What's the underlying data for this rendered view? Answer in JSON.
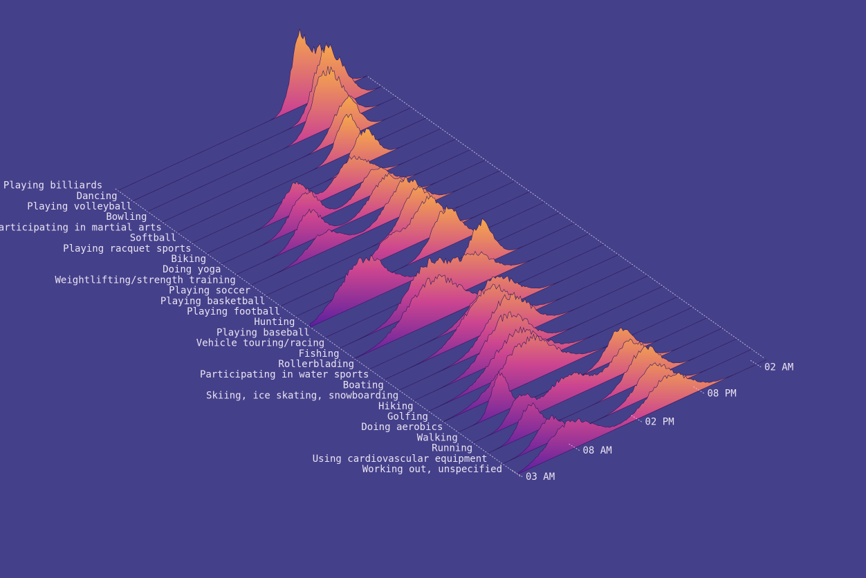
{
  "chart_data": {
    "type": "area",
    "title": "",
    "xlabel": "",
    "ylabel": "",
    "colors": {
      "background": "#45408a",
      "low": "#5a1fa0",
      "mid": "#cc4590",
      "high": "#f7a84a",
      "guide": "#d9d4ea",
      "text": "#e9e4f2"
    },
    "x_ticks": [
      "03 AM",
      "08 AM",
      "02 PM",
      "08 PM",
      "02 AM"
    ],
    "x_range_hours": [
      3,
      27
    ],
    "categories": [
      "Playing billiards",
      "Dancing",
      "Playing volleyball",
      "Bowling",
      "Participating in martial arts",
      "Softball",
      "Playing racquet sports",
      "Biking",
      "Doing yoga",
      "Weightlifting/strength training",
      "Playing soccer",
      "Playing basketball",
      "Playing football",
      "Hunting",
      "Playing baseball",
      "Vehicle touring/racing",
      "Fishing",
      "Rollerblading",
      "Participating in water sports",
      "Boating",
      "Skiing, ice skating, snowboarding",
      "Hiking",
      "Golfing",
      "Doing aerobics",
      "Walking",
      "Running",
      "Using cardiovascular equipment",
      "Working out, unspecified"
    ],
    "series": [
      {
        "peaks": [
          [
            20.5,
            1.3,
            0.8
          ],
          [
            22.8,
            1.0,
            1.3
          ]
        ]
      },
      {
        "peaks": [
          [
            21.3,
            1.0,
            1.0
          ],
          [
            23.0,
            0.7,
            1.2
          ]
        ]
      },
      {
        "peaks": [
          [
            19.8,
            0.9,
            1.1
          ],
          [
            21.5,
            0.6,
            1.3
          ]
        ]
      },
      {
        "peaks": [
          [
            20.7,
            0.8,
            1.2
          ]
        ]
      },
      {
        "peaks": [
          [
            19.4,
            0.8,
            1.0
          ]
        ]
      },
      {
        "peaks": [
          [
            19.6,
            0.7,
            1.1
          ]
        ]
      },
      {
        "peaks": [
          [
            11.5,
            0.6,
            1.2
          ],
          [
            17.0,
            0.6,
            1.6
          ]
        ]
      },
      {
        "peaks": [
          [
            11.0,
            0.7,
            1.3
          ],
          [
            17.8,
            0.5,
            1.4
          ]
        ]
      },
      {
        "peaks": [
          [
            10.0,
            0.6,
            1.2
          ],
          [
            17.5,
            0.6,
            1.5
          ]
        ]
      },
      {
        "peaks": [
          [
            17.8,
            0.7,
            1.6
          ],
          [
            10.0,
            0.4,
            1.5
          ]
        ]
      },
      {
        "peaks": [
          [
            17.5,
            0.8,
            1.3
          ]
        ]
      },
      {
        "peaks": [
          [
            17.2,
            0.8,
            1.4
          ],
          [
            13.5,
            0.4,
            1.3
          ]
        ]
      },
      {
        "peaks": [
          [
            17.5,
            0.8,
            1.3
          ]
        ]
      },
      {
        "peaks": [
          [
            8.0,
            0.9,
            2.2
          ]
        ]
      },
      {
        "peaks": [
          [
            18.0,
            0.9,
            1.2
          ]
        ]
      },
      {
        "peaks": [
          [
            11.5,
            0.9,
            2.0
          ],
          [
            16.0,
            0.6,
            1.8
          ]
        ]
      },
      {
        "peaks": [
          [
            10.5,
            0.9,
            2.4
          ]
        ]
      },
      {
        "peaks": [
          [
            15.0,
            0.7,
            2.0
          ]
        ]
      },
      {
        "peaks": [
          [
            13.0,
            0.9,
            2.2
          ]
        ]
      },
      {
        "peaks": [
          [
            13.5,
            0.9,
            2.0
          ]
        ]
      },
      {
        "peaks": [
          [
            12.0,
            0.9,
            2.0
          ]
        ]
      },
      {
        "peaks": [
          [
            11.5,
            0.8,
            2.3
          ]
        ]
      },
      {
        "peaks": [
          [
            11.0,
            0.9,
            2.5
          ]
        ]
      },
      {
        "peaks": [
          [
            7.0,
            0.8,
            0.8
          ],
          [
            18.5,
            0.6,
            1.2
          ]
        ]
      },
      {
        "peaks": [
          [
            7.5,
            0.5,
            1.0
          ],
          [
            12.0,
            0.5,
            2.0
          ],
          [
            18.0,
            0.6,
            1.5
          ]
        ]
      },
      {
        "peaks": [
          [
            7.0,
            0.6,
            1.0
          ],
          [
            18.0,
            0.7,
            1.5
          ]
        ]
      },
      {
        "peaks": [
          [
            7.5,
            0.5,
            1.2
          ],
          [
            17.5,
            0.6,
            1.6
          ]
        ]
      },
      {
        "peaks": [
          [
            8.0,
            0.6,
            2.0
          ],
          [
            17.5,
            0.6,
            2.0
          ]
        ]
      }
    ]
  }
}
